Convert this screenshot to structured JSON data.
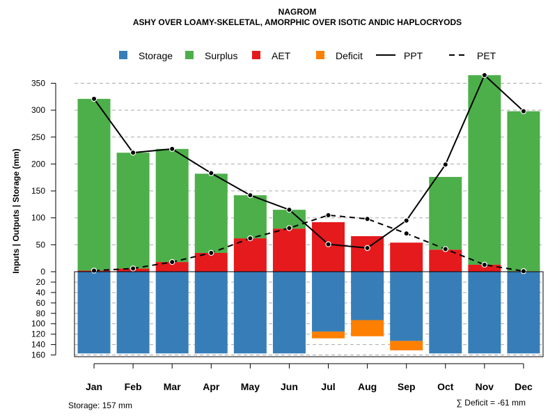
{
  "chart_data": {
    "type": "bar",
    "title": "NAGROM",
    "subtitle": "ASHY OVER LOAMY-SKELETAL, AMORPHIC OVER ISOTIC ANDIC HAPLOCRYODS",
    "ylabel": "Inputs | Outputs | Storage    (mm)",
    "categories": [
      "Jan",
      "Feb",
      "Mar",
      "Apr",
      "May",
      "Jun",
      "Jul",
      "Aug",
      "Sep",
      "Oct",
      "Nov",
      "Dec"
    ],
    "upper_ylim": [
      0,
      370
    ],
    "upper_ticks": [
      0,
      50,
      100,
      150,
      200,
      250,
      300,
      350
    ],
    "lower_ylim": [
      0,
      160
    ],
    "lower_ticks": [
      20,
      40,
      60,
      80,
      100,
      120,
      140,
      160
    ],
    "legend": [
      {
        "name": "Storage",
        "color": "#377eb8",
        "kind": "box"
      },
      {
        "name": "Surplus",
        "color": "#4daf4a",
        "kind": "box"
      },
      {
        "name": "AET",
        "color": "#e41a1c",
        "kind": "box"
      },
      {
        "name": "Deficit",
        "color": "#ff7f00",
        "kind": "box"
      },
      {
        "name": "PPT",
        "color": "#000000",
        "kind": "solid"
      },
      {
        "name": "PET",
        "color": "#000000",
        "kind": "dashed"
      }
    ],
    "series": [
      {
        "name": "AET",
        "values": [
          2,
          6,
          18,
          35,
          62,
          80,
          92,
          66,
          54,
          41,
          13,
          1
        ]
      },
      {
        "name": "Surplus",
        "values": [
          319,
          215,
          210,
          147,
          80,
          35,
          0,
          0,
          0,
          135,
          352,
          297
        ]
      },
      {
        "name": "PPT",
        "values": [
          321,
          221,
          228,
          183,
          142,
          115,
          51,
          44,
          95,
          199,
          365,
          298
        ]
      },
      {
        "name": "PET",
        "values": [
          2,
          6,
          18,
          35,
          62,
          81,
          105,
          98,
          71,
          42,
          13,
          1
        ]
      },
      {
        "name": "Storage",
        "values": [
          157,
          157,
          157,
          157,
          157,
          157,
          115,
          93,
          133,
          157,
          157,
          157
        ]
      },
      {
        "name": "Deficit",
        "values": [
          0,
          0,
          0,
          0,
          0,
          0,
          13,
          31,
          18,
          0,
          0,
          0
        ]
      }
    ]
  },
  "footer": {
    "storage_label": "Storage: 157 mm",
    "deficit_label": "∑ Deficit = -61 mm"
  }
}
